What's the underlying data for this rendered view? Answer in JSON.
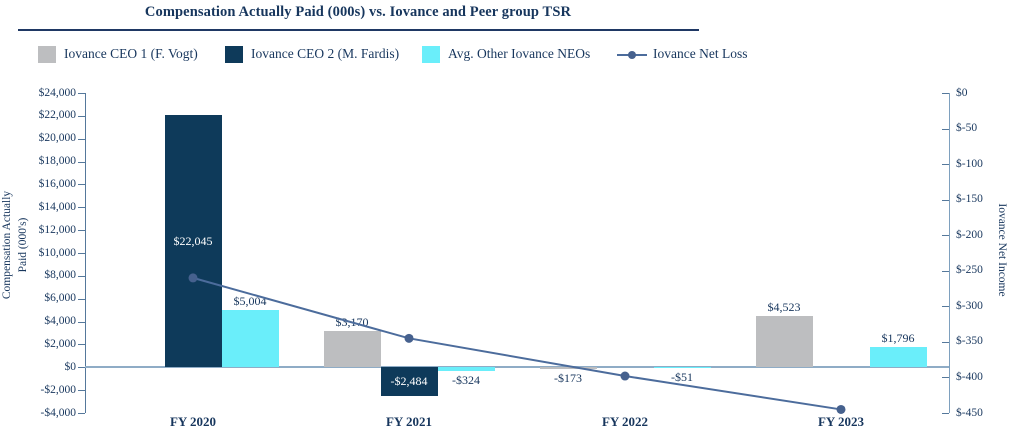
{
  "title": "Compensation Actually Paid (000s) vs. Iovance and Peer group TSR",
  "left_axis": {
    "title": "Compensation Actually\nPaid (000's)",
    "ticks": [
      "$24,000",
      "$22,000",
      "$20,000",
      "$18,000",
      "$16,000",
      "$14,000",
      "$12,000",
      "$10,000",
      "$8,000",
      "$6,000",
      "$4,000",
      "$2,000",
      "$0",
      "-$2,000",
      "-$4,000"
    ]
  },
  "right_axis": {
    "title": "Iovance Net Income",
    "ticks": [
      "$0",
      "$-50",
      "$-100",
      "$-150",
      "$-200",
      "$-250",
      "$-300",
      "$-350",
      "$-400",
      "$-450"
    ]
  },
  "legend": {
    "items": [
      {
        "label": "Iovance CEO 1 (F. Vogt)",
        "swatch_color": "#BDBEC0",
        "type": "box"
      },
      {
        "label": "Iovance CEO 2 (M. Fardis)",
        "swatch_color": "#0E3A5A",
        "type": "box"
      },
      {
        "label": "Avg. Other Iovance NEOs",
        "swatch_color": "#6AEEFA",
        "type": "box"
      },
      {
        "label": "Iovance Net Loss",
        "swatch_color": "#4C6C9C",
        "type": "line"
      }
    ]
  },
  "colors": {
    "ceo1_gray": "#BDBEC0",
    "ceo2_navy": "#0E3A5A",
    "neos_cyan": "#6AEEFA",
    "net_loss_line": "#4C6C9C",
    "net_loss_marker": "#46618E",
    "text_navy": "#17365D",
    "title_rule_navy": "#1F3864"
  },
  "chart_data": {
    "type": "bar",
    "title": "Compensation Actually Paid (000s) vs. Iovance and Peer group TSR",
    "categories": [
      "FY 2020",
      "FY 2021",
      "FY 2022",
      "FY 2023"
    ],
    "left_axis_label": "Compensation Actually Paid (000's)",
    "right_axis_label": "Iovance Net Income",
    "left_ylim": [
      -4000,
      24000
    ],
    "left_tick_step": 2000,
    "right_ylim": [
      -450,
      0
    ],
    "right_tick_step": 50,
    "grid": false,
    "legend_position": "top",
    "series": [
      {
        "name": "Iovance CEO 1 (F. Vogt)",
        "color": "#BDBEC0",
        "axis": "left",
        "values": [
          null,
          3170,
          -173,
          4523
        ],
        "labels": [
          null,
          "$3,170",
          "-$173",
          "$4,523"
        ],
        "label_placement": "outside"
      },
      {
        "name": "Iovance CEO 2 (M. Fardis)",
        "color": "#0E3A5A",
        "axis": "left",
        "values": [
          22045,
          -2484,
          null,
          null
        ],
        "labels": [
          "$22,045",
          "-$2,484",
          null,
          null
        ],
        "label_placement": "inside"
      },
      {
        "name": "Avg. Other Iovance NEOs",
        "color": "#6AEEFA",
        "axis": "left",
        "values": [
          5004,
          -324,
          -51,
          1796
        ],
        "labels": [
          "$5,004",
          "-$324",
          "-$51",
          "$1,796"
        ],
        "label_placement": "outside"
      }
    ],
    "line_series": {
      "name": "Iovance Net Loss",
      "type": "line",
      "axis": "right",
      "color": "#4C6C9C",
      "marker": "circle",
      "marker_color": "#46618E",
      "values": [
        -260,
        -345,
        -398,
        -445
      ]
    }
  }
}
